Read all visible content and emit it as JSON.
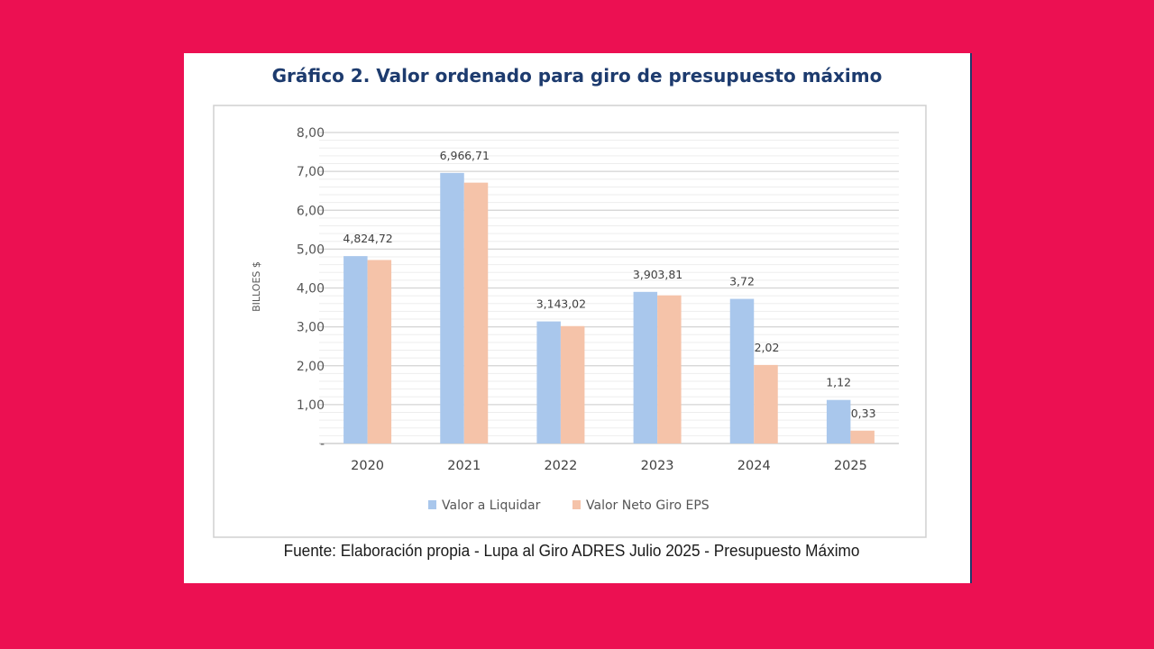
{
  "title": "Gráfico 2. Valor ordenado para giro de presupuesto máximo",
  "source": "Fuente: Elaboración propia  - Lupa al Giro ADRES Julio 2025 -  Presupuesto Máximo",
  "colors": {
    "background": "#ec1052",
    "title": "#1d3b6e",
    "series1": "#a9c7ec",
    "series2": "#f5c3a9"
  },
  "chart_data": {
    "type": "bar",
    "categories": [
      "2020",
      "2021",
      "2022",
      "2023",
      "2024",
      "2025"
    ],
    "series": [
      {
        "name": "Valor a Liquidar",
        "values": [
          4.82,
          6.96,
          3.14,
          3.9,
          3.72,
          1.12
        ],
        "labels": [
          "4,82",
          "6,96",
          "3,14",
          "3,90",
          "3,72",
          "1,12"
        ]
      },
      {
        "name": "Valor Neto Giro EPS",
        "values": [
          4.72,
          6.71,
          3.02,
          3.81,
          2.02,
          0.33
        ],
        "labels": [
          "4,72",
          "6,71",
          "3,02",
          "3,81",
          "2,02",
          "0,33"
        ]
      }
    ],
    "ylabel": "BILLOES $",
    "ylim": [
      0,
      8
    ],
    "yticks": [
      "-",
      "1,00",
      "2,00",
      "3,00",
      "4,00",
      "5,00",
      "6,00",
      "7,00",
      "8,00"
    ],
    "grid": true,
    "legend": "bottom"
  }
}
